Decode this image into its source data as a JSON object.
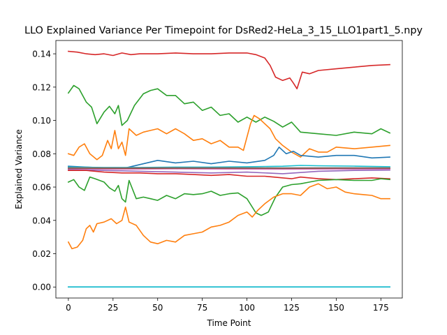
{
  "chart_data": {
    "type": "line",
    "title": "LLO Explained Variance Per Timepoint for DsRed2-HeLa_3_15_LLO1part1_5.npy",
    "xlabel": "Time Point",
    "ylabel": "Explained Variance",
    "xlim": [
      -7,
      187
    ],
    "ylim": [
      -0.0066,
      0.148
    ],
    "xticks": [
      0,
      25,
      50,
      75,
      100,
      125,
      150,
      175
    ],
    "xtick_labels": [
      "0",
      "25",
      "50",
      "75",
      "100",
      "125",
      "150",
      "175"
    ],
    "yticks": [
      0.0,
      0.02,
      0.04,
      0.06,
      0.08,
      0.1,
      0.12,
      0.14
    ],
    "ytick_labels": [
      "0.00",
      "0.02",
      "0.04",
      "0.06",
      "0.08",
      "0.10",
      "0.12",
      "0.14"
    ],
    "grid": false,
    "legend": "none",
    "series": [
      {
        "color": "#d62728",
        "points": [
          [
            0,
            0.1415
          ],
          [
            5,
            0.141
          ],
          [
            10,
            0.14
          ],
          [
            15,
            0.1395
          ],
          [
            20,
            0.14
          ],
          [
            25,
            0.139
          ],
          [
            30,
            0.1405
          ],
          [
            35,
            0.1395
          ],
          [
            40,
            0.14
          ],
          [
            50,
            0.14
          ],
          [
            60,
            0.1405
          ],
          [
            70,
            0.14
          ],
          [
            80,
            0.14
          ],
          [
            90,
            0.1405
          ],
          [
            100,
            0.1405
          ],
          [
            105,
            0.1395
          ],
          [
            110,
            0.1375
          ],
          [
            113,
            0.133
          ],
          [
            116,
            0.126
          ],
          [
            120,
            0.124
          ],
          [
            124,
            0.1255
          ],
          [
            126,
            0.1225
          ],
          [
            128,
            0.119
          ],
          [
            131,
            0.129
          ],
          [
            135,
            0.128
          ],
          [
            140,
            0.13
          ],
          [
            150,
            0.131
          ],
          [
            160,
            0.132
          ],
          [
            170,
            0.133
          ],
          [
            180,
            0.1335
          ]
        ]
      },
      {
        "color": "#2ca02c",
        "points": [
          [
            0,
            0.1165
          ],
          [
            3,
            0.121
          ],
          [
            6,
            0.119
          ],
          [
            10,
            0.111
          ],
          [
            13,
            0.108
          ],
          [
            16,
            0.098
          ],
          [
            20,
            0.105
          ],
          [
            23,
            0.1085
          ],
          [
            26,
            0.104
          ],
          [
            28,
            0.109
          ],
          [
            30,
            0.097
          ],
          [
            33,
            0.1
          ],
          [
            37,
            0.109
          ],
          [
            42,
            0.116
          ],
          [
            46,
            0.118
          ],
          [
            50,
            0.119
          ],
          [
            55,
            0.115
          ],
          [
            60,
            0.115
          ],
          [
            65,
            0.11
          ],
          [
            70,
            0.111
          ],
          [
            75,
            0.106
          ],
          [
            80,
            0.108
          ],
          [
            85,
            0.103
          ],
          [
            90,
            0.104
          ],
          [
            95,
            0.099
          ],
          [
            100,
            0.102
          ],
          [
            105,
            0.099
          ],
          [
            110,
            0.102
          ],
          [
            115,
            0.0995
          ],
          [
            120,
            0.096
          ],
          [
            125,
            0.099
          ],
          [
            130,
            0.093
          ],
          [
            140,
            0.092
          ],
          [
            150,
            0.091
          ],
          [
            160,
            0.093
          ],
          [
            170,
            0.092
          ],
          [
            175,
            0.095
          ],
          [
            180,
            0.0925
          ]
        ]
      },
      {
        "color": "#ff7f0e",
        "points": [
          [
            0,
            0.08
          ],
          [
            3,
            0.079
          ],
          [
            6,
            0.084
          ],
          [
            9,
            0.086
          ],
          [
            12,
            0.08
          ],
          [
            16,
            0.0765
          ],
          [
            19,
            0.079
          ],
          [
            22,
            0.088
          ],
          [
            24,
            0.083
          ],
          [
            26,
            0.094
          ],
          [
            28,
            0.083
          ],
          [
            30,
            0.087
          ],
          [
            32,
            0.079
          ],
          [
            34,
            0.095
          ],
          [
            38,
            0.091
          ],
          [
            42,
            0.093
          ],
          [
            46,
            0.094
          ],
          [
            50,
            0.095
          ],
          [
            55,
            0.092
          ],
          [
            60,
            0.095
          ],
          [
            65,
            0.092
          ],
          [
            70,
            0.088
          ],
          [
            75,
            0.089
          ],
          [
            80,
            0.086
          ],
          [
            85,
            0.088
          ],
          [
            90,
            0.084
          ],
          [
            95,
            0.084
          ],
          [
            98,
            0.082
          ],
          [
            102,
            0.098
          ],
          [
            104,
            0.103
          ],
          [
            107,
            0.101
          ],
          [
            110,
            0.098
          ],
          [
            113,
            0.095
          ],
          [
            116,
            0.089
          ],
          [
            120,
            0.085
          ],
          [
            125,
            0.081
          ],
          [
            130,
            0.078
          ],
          [
            135,
            0.083
          ],
          [
            140,
            0.081
          ],
          [
            145,
            0.081
          ],
          [
            150,
            0.084
          ],
          [
            160,
            0.083
          ],
          [
            170,
            0.084
          ],
          [
            180,
            0.085
          ]
        ]
      },
      {
        "color": "#1f77b4",
        "points": [
          [
            0,
            0.0725
          ],
          [
            10,
            0.072
          ],
          [
            20,
            0.0715
          ],
          [
            30,
            0.071
          ],
          [
            40,
            0.0735
          ],
          [
            50,
            0.076
          ],
          [
            60,
            0.0745
          ],
          [
            70,
            0.0755
          ],
          [
            80,
            0.074
          ],
          [
            90,
            0.0755
          ],
          [
            100,
            0.0745
          ],
          [
            110,
            0.076
          ],
          [
            115,
            0.079
          ],
          [
            118,
            0.084
          ],
          [
            122,
            0.08
          ],
          [
            126,
            0.0815
          ],
          [
            130,
            0.079
          ],
          [
            140,
            0.078
          ],
          [
            150,
            0.079
          ],
          [
            160,
            0.079
          ],
          [
            170,
            0.0775
          ],
          [
            180,
            0.078
          ]
        ]
      },
      {
        "color": "#17becf",
        "points": [
          [
            0,
            0.072
          ],
          [
            20,
            0.0718
          ],
          [
            40,
            0.0718
          ],
          [
            60,
            0.072
          ],
          [
            80,
            0.072
          ],
          [
            100,
            0.0722
          ],
          [
            120,
            0.0725
          ],
          [
            130,
            0.073
          ],
          [
            140,
            0.0728
          ],
          [
            160,
            0.0726
          ],
          [
            180,
            0.0722
          ]
        ]
      },
      {
        "color": "#bcbd22",
        "points": [
          [
            0,
            0.0712
          ],
          [
            30,
            0.071
          ],
          [
            60,
            0.0714
          ],
          [
            90,
            0.0712
          ],
          [
            120,
            0.0714
          ],
          [
            150,
            0.0712
          ],
          [
            180,
            0.0712
          ]
        ]
      },
      {
        "color": "#7f7f7f",
        "points": [
          [
            0,
            0.0716
          ],
          [
            30,
            0.0715
          ],
          [
            60,
            0.0716
          ],
          [
            90,
            0.0716
          ],
          [
            120,
            0.0715
          ],
          [
            150,
            0.0716
          ],
          [
            180,
            0.0715
          ]
        ]
      },
      {
        "color": "#e377c2",
        "points": [
          [
            0,
            0.071
          ],
          [
            30,
            0.0707
          ],
          [
            60,
            0.0709
          ],
          [
            90,
            0.0708
          ],
          [
            120,
            0.0707
          ],
          [
            150,
            0.0708
          ],
          [
            180,
            0.0708
          ]
        ]
      },
      {
        "color": "#8c564b",
        "points": [
          [
            0,
            0.0713
          ],
          [
            30,
            0.0712
          ],
          [
            60,
            0.0713
          ],
          [
            90,
            0.0713
          ],
          [
            120,
            0.0712
          ],
          [
            150,
            0.0713
          ],
          [
            180,
            0.0713
          ]
        ]
      },
      {
        "color": "#9467bd",
        "points": [
          [
            0,
            0.0705
          ],
          [
            20,
            0.07
          ],
          [
            40,
            0.0695
          ],
          [
            60,
            0.069
          ],
          [
            80,
            0.0685
          ],
          [
            100,
            0.069
          ],
          [
            120,
            0.068
          ],
          [
            140,
            0.0695
          ],
          [
            160,
            0.07
          ],
          [
            180,
            0.0702
          ]
        ]
      },
      {
        "color": "#d62728",
        "points": [
          [
            0,
            0.07
          ],
          [
            10,
            0.07
          ],
          [
            20,
            0.069
          ],
          [
            30,
            0.0685
          ],
          [
            40,
            0.0685
          ],
          [
            50,
            0.068
          ],
          [
            60,
            0.068
          ],
          [
            70,
            0.0675
          ],
          [
            80,
            0.067
          ],
          [
            90,
            0.0675
          ],
          [
            100,
            0.0665
          ],
          [
            110,
            0.0665
          ],
          [
            115,
            0.066
          ],
          [
            125,
            0.065
          ],
          [
            130,
            0.066
          ],
          [
            140,
            0.065
          ],
          [
            150,
            0.0645
          ],
          [
            160,
            0.065
          ],
          [
            170,
            0.0655
          ],
          [
            180,
            0.065
          ]
        ]
      },
      {
        "color": "#2ca02c",
        "points": [
          [
            0,
            0.063
          ],
          [
            3,
            0.0645
          ],
          [
            6,
            0.06
          ],
          [
            9,
            0.058
          ],
          [
            12,
            0.066
          ],
          [
            15,
            0.065
          ],
          [
            20,
            0.063
          ],
          [
            23,
            0.0595
          ],
          [
            26,
            0.0575
          ],
          [
            28,
            0.061
          ],
          [
            30,
            0.053
          ],
          [
            32,
            0.051
          ],
          [
            34,
            0.064
          ],
          [
            38,
            0.053
          ],
          [
            42,
            0.054
          ],
          [
            46,
            0.053
          ],
          [
            50,
            0.052
          ],
          [
            55,
            0.055
          ],
          [
            60,
            0.053
          ],
          [
            65,
            0.056
          ],
          [
            70,
            0.0555
          ],
          [
            75,
            0.056
          ],
          [
            80,
            0.0575
          ],
          [
            85,
            0.055
          ],
          [
            90,
            0.056
          ],
          [
            95,
            0.0565
          ],
          [
            100,
            0.053
          ],
          [
            105,
            0.0445
          ],
          [
            108,
            0.043
          ],
          [
            112,
            0.045
          ],
          [
            116,
            0.054
          ],
          [
            120,
            0.06
          ],
          [
            125,
            0.0615
          ],
          [
            130,
            0.062
          ],
          [
            135,
            0.063
          ],
          [
            140,
            0.064
          ],
          [
            150,
            0.0645
          ],
          [
            160,
            0.064
          ],
          [
            170,
            0.064
          ],
          [
            175,
            0.065
          ],
          [
            180,
            0.0645
          ]
        ]
      },
      {
        "color": "#ff7f0e",
        "points": [
          [
            0,
            0.027
          ],
          [
            2,
            0.023
          ],
          [
            5,
            0.024
          ],
          [
            8,
            0.028
          ],
          [
            10,
            0.035
          ],
          [
            12,
            0.037
          ],
          [
            14,
            0.033
          ],
          [
            16,
            0.038
          ],
          [
            20,
            0.039
          ],
          [
            24,
            0.041
          ],
          [
            27,
            0.038
          ],
          [
            30,
            0.04
          ],
          [
            32,
            0.048
          ],
          [
            34,
            0.039
          ],
          [
            38,
            0.037
          ],
          [
            42,
            0.031
          ],
          [
            46,
            0.027
          ],
          [
            50,
            0.026
          ],
          [
            55,
            0.028
          ],
          [
            60,
            0.027
          ],
          [
            65,
            0.031
          ],
          [
            70,
            0.032
          ],
          [
            75,
            0.033
          ],
          [
            80,
            0.036
          ],
          [
            85,
            0.037
          ],
          [
            90,
            0.039
          ],
          [
            95,
            0.043
          ],
          [
            100,
            0.045
          ],
          [
            103,
            0.042
          ],
          [
            106,
            0.046
          ],
          [
            110,
            0.05
          ],
          [
            115,
            0.054
          ],
          [
            120,
            0.056
          ],
          [
            125,
            0.056
          ],
          [
            130,
            0.055
          ],
          [
            135,
            0.06
          ],
          [
            140,
            0.062
          ],
          [
            145,
            0.059
          ],
          [
            150,
            0.06
          ],
          [
            155,
            0.057
          ],
          [
            160,
            0.056
          ],
          [
            165,
            0.0555
          ],
          [
            170,
            0.055
          ],
          [
            175,
            0.053
          ],
          [
            180,
            0.053
          ]
        ]
      },
      {
        "color": "#1f77b4",
        "points": [
          [
            0,
            0.0
          ],
          [
            180,
            0.0
          ]
        ]
      },
      {
        "color": "#17becf",
        "points": [
          [
            0,
            0.0
          ],
          [
            180,
            0.0
          ]
        ]
      }
    ]
  }
}
